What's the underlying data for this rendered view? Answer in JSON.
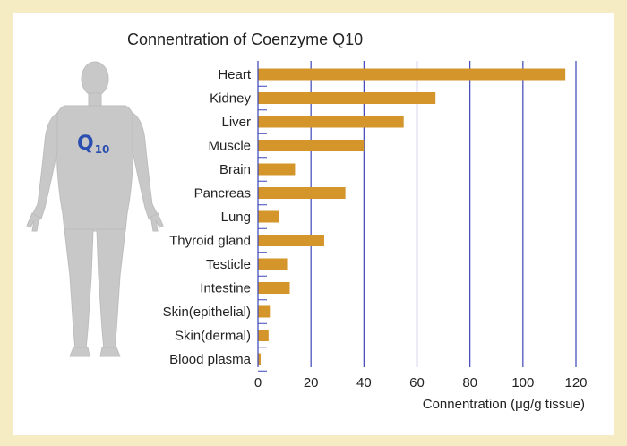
{
  "chart_data": {
    "type": "bar",
    "orientation": "horizontal",
    "title": "Connentration of Coenzyme Q10",
    "xlabel": "Connentration (μg/g tissue)",
    "ylabel": "",
    "categories": [
      "Heart",
      "Kidney",
      "Liver",
      "Muscle",
      "Brain",
      "Pancreas",
      "Lung",
      "Thyroid gland",
      "Testicle",
      "Intestine",
      "Skin(epithelial)",
      "Skin(dermal)",
      "Blood plasma"
    ],
    "values": [
      116,
      67,
      55,
      40,
      14,
      33,
      8,
      25,
      11,
      12,
      4.5,
      4,
      1
    ],
    "xlim": [
      0,
      120
    ],
    "xticks": [
      "0",
      "20",
      "40",
      "60",
      "80",
      "100",
      "120"
    ],
    "grid": true,
    "colors": {
      "bar": "#d4952a",
      "grid": "#3a44b8",
      "frame": "#f6ecc4"
    }
  },
  "illustration": {
    "icon": "human-body-icon",
    "label_main": "Q",
    "label_sub": "10"
  }
}
